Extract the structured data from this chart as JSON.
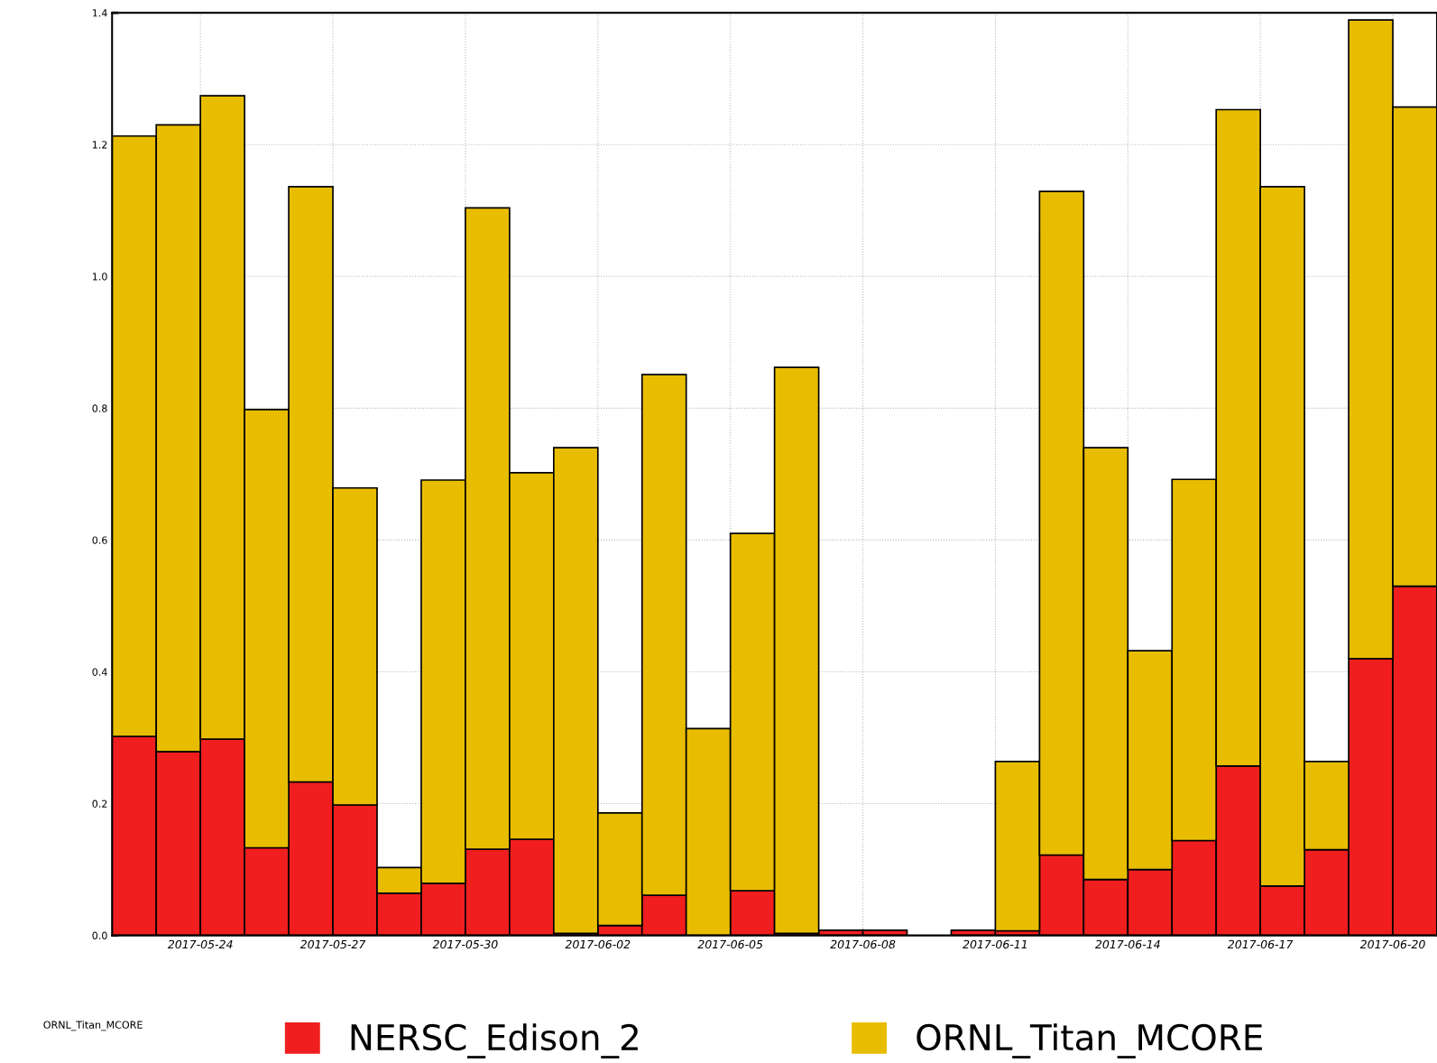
{
  "chart_data": {
    "type": "bar",
    "stacked": true,
    "grid": true,
    "legend": "bottom",
    "x": [
      "2017-05-22T12:00",
      "2017-05-23T12:00",
      "2017-05-24T12:00",
      "2017-05-25T12:00",
      "2017-05-26T12:00",
      "2017-05-27T12:00",
      "2017-05-28T12:00",
      "2017-05-29T12:00",
      "2017-05-30T12:00",
      "2017-05-31T12:00",
      "2017-06-01T12:00",
      "2017-06-02T12:00",
      "2017-06-03T12:00",
      "2017-06-04T12:00",
      "2017-06-05T12:00",
      "2017-06-06T12:00",
      "2017-06-07T12:00",
      "2017-06-08T12:00",
      "2017-06-09T12:00",
      "2017-06-10T12:00",
      "2017-06-11T12:00",
      "2017-06-12T12:00",
      "2017-06-13T12:00",
      "2017-06-14T12:00",
      "2017-06-15T12:00",
      "2017-06-16T12:00",
      "2017-06-17T12:00",
      "2017-06-18T12:00",
      "2017-06-19T12:00",
      "2017-06-20T12:00"
    ],
    "series": [
      {
        "name": "NERSC_Edison_2",
        "color": "#f01e1e",
        "values": [
          0.302,
          0.279,
          0.298,
          0.133,
          0.233,
          0.198,
          0.064,
          0.079,
          0.131,
          0.146,
          0.003,
          0.015,
          0.061,
          null,
          0.068,
          0.003,
          0.008,
          0.008,
          null,
          0.008,
          0.007,
          0.122,
          0.085,
          0.1,
          0.144,
          0.257,
          0.075,
          0.13,
          0.42,
          0.53
        ]
      },
      {
        "name": "ORNL_Titan_MCORE",
        "color": "#e8bd00",
        "values": [
          0.911,
          0.951,
          0.976,
          0.665,
          0.903,
          0.481,
          0.039,
          0.612,
          0.973,
          0.556,
          0.737,
          0.171,
          0.79,
          0.314,
          0.542,
          0.859,
          null,
          null,
          null,
          null,
          0.257,
          1.007,
          0.655,
          0.332,
          0.548,
          0.996,
          1.061,
          0.134,
          0.969,
          0.727
        ]
      }
    ],
    "xlim": [
      "2017-05-22",
      "2017-06-21"
    ],
    "xticks": [
      {
        "value": "2017-05-24",
        "label": "2017-05-24"
      },
      {
        "value": "2017-05-27",
        "label": "2017-05-27"
      },
      {
        "value": "2017-05-30",
        "label": "2017-05-30"
      },
      {
        "value": "2017-06-02",
        "label": "2017-06-02"
      },
      {
        "value": "2017-06-05",
        "label": "2017-06-05"
      },
      {
        "value": "2017-06-08",
        "label": "2017-06-08"
      },
      {
        "value": "2017-06-11",
        "label": "2017-06-11"
      },
      {
        "value": "2017-06-14",
        "label": "2017-06-14"
      },
      {
        "value": "2017-06-17",
        "label": "2017-06-17"
      },
      {
        "value": "2017-06-20",
        "label": "2017-06-20"
      }
    ],
    "ylim": [
      0,
      1.4
    ],
    "yticks": [
      {
        "value": 0,
        "label": "0.0"
      },
      {
        "value": 0.2,
        "label": "0.2"
      },
      {
        "value": 0.4,
        "label": "0.4"
      },
      {
        "value": 0.6,
        "label": "0.6"
      },
      {
        "value": 0.8,
        "label": "0.8"
      },
      {
        "value": 1.0,
        "label": "1.0"
      },
      {
        "value": 1.2,
        "label": "1.2"
      },
      {
        "value": 1.4,
        "label": "1.4"
      }
    ],
    "annotations": [
      "ORNL_Titan_MCORE"
    ]
  }
}
